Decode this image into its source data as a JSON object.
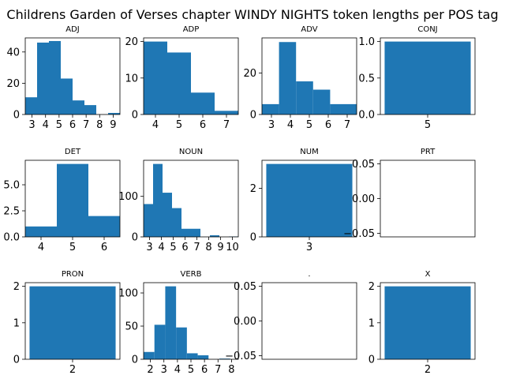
{
  "figure": {
    "title": "Childrens Garden of Verses chapter WINDY NIGHTS token lengths per POS tag"
  },
  "colors": {
    "bar": "#1f77b4",
    "axis": "#000000"
  },
  "chart_data": [
    {
      "type": "bar",
      "title": "ADJ",
      "bins": [
        [
          2.5,
          3.375
        ],
        [
          3.375,
          4.25
        ],
        [
          4.25,
          5.125
        ],
        [
          5.125,
          6
        ],
        [
          6,
          6.875
        ],
        [
          6.875,
          7.75
        ],
        [
          7.75,
          8.625
        ],
        [
          8.625,
          9.5
        ]
      ],
      "values": [
        11,
        46,
        47,
        23,
        9,
        6,
        0,
        1
      ],
      "xlim": [
        2.5,
        9.5
      ],
      "ylim": [
        0,
        49
      ],
      "xticks": [
        3,
        4,
        5,
        6,
        7,
        8,
        9
      ],
      "xticklabels": [
        "3",
        "4",
        "5",
        "6",
        "7",
        "8",
        "9"
      ],
      "yticks": [
        0,
        20,
        40
      ],
      "yticklabels": [
        "0",
        "20",
        "40"
      ]
    },
    {
      "type": "bar",
      "title": "ADP",
      "bins": [
        [
          3.5,
          4.5
        ],
        [
          4.5,
          5.5
        ],
        [
          5.5,
          6.5
        ],
        [
          6.5,
          7.5
        ]
      ],
      "values": [
        20,
        17,
        6,
        1
      ],
      "xlim": [
        3.5,
        7.5
      ],
      "ylim": [
        0,
        21
      ],
      "xticks": [
        4,
        5,
        6,
        7
      ],
      "xticklabels": [
        "4",
        "5",
        "6",
        "7"
      ],
      "yticks": [
        0,
        10,
        20
      ],
      "yticklabels": [
        "0",
        "10",
        "20"
      ]
    },
    {
      "type": "bar",
      "title": "ADV",
      "bins": [
        [
          2.5,
          3.4
        ],
        [
          3.4,
          4.3
        ],
        [
          4.3,
          5.2
        ],
        [
          5.2,
          6.1
        ],
        [
          6.1,
          7.0
        ],
        [
          7.0,
          7.5
        ]
      ],
      "values": [
        5,
        35,
        16,
        12,
        5,
        5
      ],
      "xlim": [
        2.5,
        7.5
      ],
      "ylim": [
        0,
        37
      ],
      "xticks": [
        3,
        4,
        5,
        6,
        7
      ],
      "xticklabels": [
        "3",
        "4",
        "5",
        "6",
        "7"
      ],
      "yticks": [
        0,
        20
      ],
      "yticklabels": [
        "0",
        "20"
      ]
    },
    {
      "type": "bar",
      "title": "CONJ",
      "bins": [
        [
          4.5,
          5.5
        ]
      ],
      "values": [
        1
      ],
      "xlim": [
        4.45,
        5.55
      ],
      "ylim": [
        0,
        1.05
      ],
      "xticks": [
        5
      ],
      "xticklabels": [
        "5"
      ],
      "yticks": [
        0,
        0.5,
        1.0
      ],
      "yticklabels": [
        "0.0",
        "0.5",
        "1.0"
      ]
    },
    {
      "type": "bar",
      "title": "DET",
      "bins": [
        [
          3.5,
          4.5
        ],
        [
          4.5,
          5.5
        ],
        [
          5.5,
          6.5
        ]
      ],
      "values": [
        1,
        7,
        2
      ],
      "xlim": [
        3.5,
        6.5
      ],
      "ylim": [
        0,
        7.35
      ],
      "xticks": [
        4,
        5,
        6
      ],
      "xticklabels": [
        "4",
        "5",
        "6"
      ],
      "yticks": [
        0,
        2.5,
        5.0
      ],
      "yticklabels": [
        "0.0",
        "2.5",
        "5.0"
      ]
    },
    {
      "type": "bar",
      "title": "NOUN",
      "bins": [
        [
          2.5,
          3.3
        ],
        [
          3.3,
          4.1
        ],
        [
          4.1,
          4.9
        ],
        [
          4.9,
          5.7
        ],
        [
          5.7,
          6.5
        ],
        [
          6.5,
          7.3
        ],
        [
          7.3,
          8.1
        ],
        [
          8.1,
          8.9
        ],
        [
          8.9,
          9.7
        ],
        [
          9.7,
          10.5
        ]
      ],
      "values": [
        81,
        180,
        109,
        71,
        20,
        20,
        0,
        4,
        0,
        1
      ],
      "xlim": [
        2.5,
        10.5
      ],
      "ylim": [
        0,
        189
      ],
      "xticks": [
        3,
        4,
        5,
        6,
        7,
        8,
        9,
        10
      ],
      "xticklabels": [
        "3",
        "4",
        "5",
        "6",
        "7",
        "8",
        "9",
        "10"
      ],
      "yticks": [
        0,
        100
      ],
      "yticklabels": [
        "0",
        "100"
      ]
    },
    {
      "type": "bar",
      "title": "NUM",
      "bins": [
        [
          2.5,
          3.5
        ]
      ],
      "values": [
        3
      ],
      "xlim": [
        2.45,
        3.55
      ],
      "ylim": [
        0,
        3.15
      ],
      "xticks": [
        3
      ],
      "xticklabels": [
        "3"
      ],
      "yticks": [
        0,
        2
      ],
      "yticklabels": [
        "0",
        "2"
      ]
    },
    {
      "type": "bar",
      "title": "PRT",
      "bins": [],
      "values": [],
      "xlim": [
        0,
        1
      ],
      "ylim": [
        -0.055,
        0.055
      ],
      "xticks": [],
      "xticklabels": [],
      "yticks": [
        -0.05,
        0,
        0.05
      ],
      "yticklabels": [
        "−0.05",
        "0.00",
        "0.05"
      ]
    },
    {
      "type": "bar",
      "title": "PRON",
      "bins": [
        [
          1.5,
          2.5
        ]
      ],
      "values": [
        2
      ],
      "xlim": [
        1.45,
        2.55
      ],
      "ylim": [
        0,
        2.1
      ],
      "xticks": [
        2
      ],
      "xticklabels": [
        "2"
      ],
      "yticks": [
        0,
        1,
        2
      ],
      "yticklabels": [
        "0",
        "1",
        "2"
      ]
    },
    {
      "type": "bar",
      "title": "VERB",
      "bins": [
        [
          1.5,
          2.3
        ],
        [
          2.3,
          3.1
        ],
        [
          3.1,
          3.9
        ],
        [
          3.9,
          4.7
        ],
        [
          4.7,
          5.5
        ],
        [
          5.5,
          6.3
        ],
        [
          6.3,
          7.1
        ],
        [
          7.1,
          7.9
        ],
        [
          7.9,
          8.5
        ]
      ],
      "values": [
        11,
        52,
        110,
        48,
        9,
        6,
        0,
        1,
        0
      ],
      "xlim": [
        1.5,
        8.5
      ],
      "ylim": [
        0,
        115.5
      ],
      "xticks": [
        2,
        3,
        4,
        5,
        6,
        7,
        8
      ],
      "xticklabels": [
        "2",
        "3",
        "4",
        "5",
        "6",
        "7",
        "8"
      ],
      "yticks": [
        0,
        50,
        100
      ],
      "yticklabels": [
        "0",
        "50",
        "100"
      ]
    },
    {
      "type": "bar",
      "title": ".",
      "bins": [],
      "values": [],
      "xlim": [
        0,
        1
      ],
      "ylim": [
        -0.055,
        0.055
      ],
      "xticks": [],
      "xticklabels": [],
      "yticks": [
        -0.05,
        0,
        0.05
      ],
      "yticklabels": [
        "−0.05",
        "0.00",
        "0.05"
      ]
    },
    {
      "type": "bar",
      "title": "X",
      "bins": [
        [
          1.5,
          2.5
        ]
      ],
      "values": [
        2
      ],
      "xlim": [
        1.45,
        2.55
      ],
      "ylim": [
        0,
        2.1
      ],
      "xticks": [
        2
      ],
      "xticklabels": [
        "2"
      ],
      "yticks": [
        0,
        1,
        2
      ],
      "yticklabels": [
        "0",
        "1",
        "2"
      ]
    }
  ]
}
